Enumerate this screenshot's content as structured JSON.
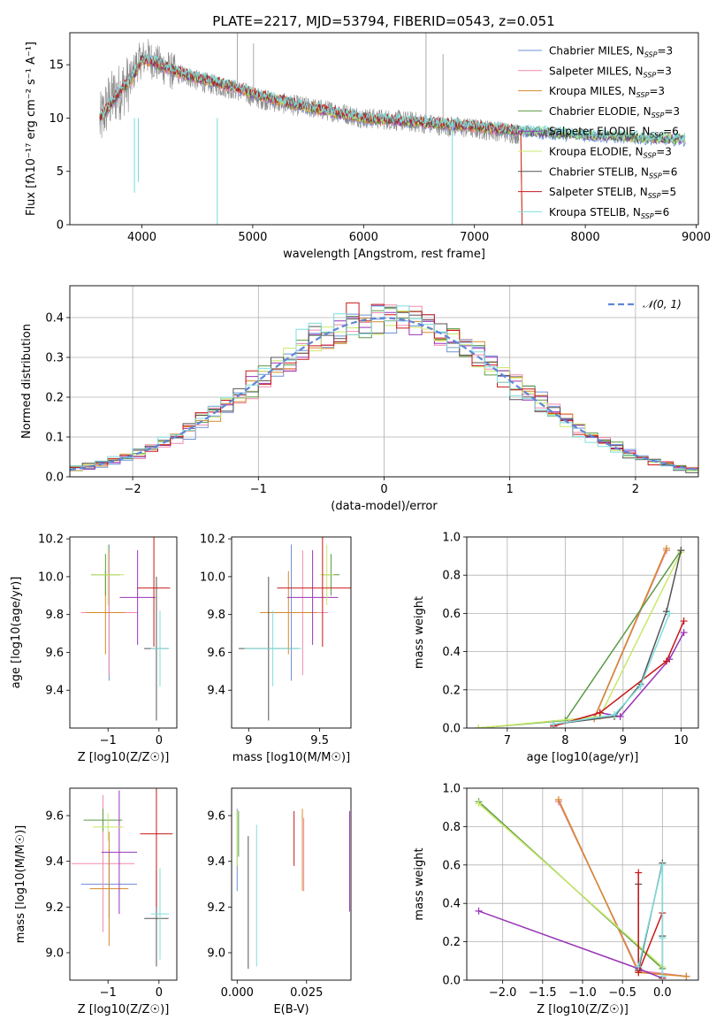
{
  "figure": {
    "title": "PLATE=2217, MJD=53794, FIBERID=0543, z=0.051"
  },
  "colors": [
    "#6f91d9",
    "#f08ab0",
    "#d68a2a",
    "#5b9a46",
    "#9a34b8",
    "#c9e86a",
    "#555555",
    "#c81818",
    "#7fdedd"
  ],
  "chart_data": [
    {
      "type": "line",
      "title": "PLATE=2217, MJD=53794, FIBERID=0543, z=0.051",
      "xlabel": "wavelength [Angstrom, rest frame]",
      "ylabel": "Flux [f_λ 10^-17 erg cm^-2 s^-1 A^-1]",
      "xlim": [
        3350,
        9020
      ],
      "ylim": [
        0,
        18
      ],
      "xticks": [
        4000,
        5000,
        6000,
        7000,
        8000,
        9000
      ],
      "yticks": [
        0,
        5,
        10,
        15
      ],
      "grid": false,
      "legend_position": "top-right",
      "legend": [
        {
          "name": "Chabrier MILES",
          "nssp": "3"
        },
        {
          "name": "Salpeter MILES",
          "nssp": "3"
        },
        {
          "name": "Kroupa MILES",
          "nssp": "3"
        },
        {
          "name": "Chabrier ELODIE",
          "nssp": "3"
        },
        {
          "name": "Salpeter ELODIE",
          "nssp": "6"
        },
        {
          "name": "Kroupa ELODIE",
          "nssp": "3"
        },
        {
          "name": "Chabrier STELIB",
          "nssp": "6"
        },
        {
          "name": "Salpeter STELIB",
          "nssp": "5"
        },
        {
          "name": "Kroupa STELIB",
          "nssp": "6"
        }
      ],
      "observed_spectrum": {
        "x": [
          3620,
          3700,
          3800,
          3900,
          3950,
          4000,
          4050,
          4100,
          4200,
          4300,
          4400,
          4500,
          4700,
          4900,
          5000,
          5200,
          5500,
          5800,
          6000,
          6300,
          6560,
          6700,
          7000,
          7200,
          7400
        ],
        "y": [
          9.5,
          11.5,
          12.5,
          13.5,
          15.0,
          15.5,
          15.8,
          15.3,
          14.8,
          14.2,
          14.0,
          13.5,
          13.0,
          12.5,
          12.0,
          11.5,
          11.0,
          10.5,
          10.0,
          9.8,
          9.5,
          9.3,
          9.0,
          8.8,
          8.5
        ]
      },
      "model_spectrum": {
        "x": [
          3620,
          3700,
          3800,
          3900,
          4000,
          4100,
          4200,
          4400,
          4600,
          4800,
          5000,
          5500,
          6000,
          6500,
          7000,
          7400,
          7800,
          8200,
          8600,
          8900
        ],
        "y": [
          10.0,
          11.0,
          12.5,
          13.5,
          15.5,
          15.3,
          14.8,
          14.0,
          13.5,
          13.0,
          12.3,
          11.0,
          10.0,
          9.6,
          9.2,
          8.8,
          8.5,
          8.3,
          8.1,
          8.0
        ]
      }
    },
    {
      "type": "line",
      "xlabel": "(data-model)/error",
      "ylabel": "Normed distribution",
      "xlim": [
        -2.5,
        2.5
      ],
      "ylim": [
        0,
        0.48
      ],
      "xticks": [
        -2,
        -1,
        0,
        1,
        2
      ],
      "yticks": [
        0.0,
        0.1,
        0.2,
        0.3,
        0.4
      ],
      "grid": true,
      "legend_position": "top-right",
      "reference_curve": "N(0,1)",
      "series_note": "step histograms, one per model, approximately following N(0,1)"
    },
    {
      "type": "scatter",
      "xlabel": "Z [log10(Z/Z☉)]",
      "ylabel": "age [log10(age/yr)]",
      "xlim": [
        -1.75,
        0.35
      ],
      "ylim": [
        9.2,
        10.21
      ],
      "xticks": [
        -1,
        0
      ],
      "yticks": [
        9.4,
        9.6,
        9.8,
        10.0,
        10.2
      ],
      "points": [
        {
          "x": -0.98,
          "y": 9.81,
          "xerr": 0.4,
          "yerr": 0.36
        },
        {
          "x": -0.98,
          "y": 9.81,
          "xerr": 0.55,
          "yerr": 0.33
        },
        {
          "x": -1.05,
          "y": 9.81,
          "xerr": 0.38,
          "yerr": 0.22
        },
        {
          "x": -1.05,
          "y": 10.01,
          "xerr": 0.28,
          "yerr": 0.11
        },
        {
          "x": -0.42,
          "y": 9.89,
          "xerr": 0.35,
          "yerr": 0.25
        },
        {
          "x": -1.0,
          "y": 10.01,
          "xerr": 0.32,
          "yerr": 0.16
        },
        {
          "x": -0.05,
          "y": 9.62,
          "xerr": 0.24,
          "yerr": 0.38
        },
        {
          "x": -0.1,
          "y": 9.94,
          "xerr": 0.32,
          "yerr": 0.31
        },
        {
          "x": 0.02,
          "y": 9.62,
          "xerr": 0.18,
          "yerr": 0.2
        }
      ]
    },
    {
      "type": "scatter",
      "xlabel": "mass [log10(M/M☉)]",
      "ylabel": "",
      "xlim": [
        8.88,
        9.72
      ],
      "ylim": [
        9.2,
        10.21
      ],
      "xticks": [
        9.0,
        9.5
      ],
      "yticks": [
        9.4,
        9.6,
        9.8,
        10.0,
        10.2
      ],
      "points": [
        {
          "x": 9.3,
          "y": 9.81,
          "xerr": 0.15,
          "yerr": 0.36
        },
        {
          "x": 9.38,
          "y": 9.81,
          "xerr": 0.18,
          "yerr": 0.33
        },
        {
          "x": 9.28,
          "y": 9.81,
          "xerr": 0.2,
          "yerr": 0.22
        },
        {
          "x": 9.58,
          "y": 10.01,
          "xerr": 0.06,
          "yerr": 0.11
        },
        {
          "x": 9.45,
          "y": 9.89,
          "xerr": 0.18,
          "yerr": 0.25
        },
        {
          "x": 9.55,
          "y": 10.01,
          "xerr": 0.05,
          "yerr": 0.16
        },
        {
          "x": 9.14,
          "y": 9.62,
          "xerr": 0.21,
          "yerr": 0.38
        },
        {
          "x": 9.52,
          "y": 9.94,
          "xerr": 0.32,
          "yerr": 0.31
        },
        {
          "x": 9.17,
          "y": 9.62,
          "xerr": 0.2,
          "yerr": 0.2
        }
      ]
    },
    {
      "type": "line",
      "xlabel": "age [log10(age/yr)]",
      "ylabel": "mass weight",
      "xlim": [
        6.3,
        10.3
      ],
      "ylim": [
        0,
        1.0
      ],
      "xticks": [
        7,
        8,
        9,
        10
      ],
      "yticks": [
        0.0,
        0.2,
        0.4,
        0.6,
        0.8,
        1.0
      ],
      "grid": true,
      "series": [
        {
          "x": [
            7.8,
            8.5,
            9.75
          ],
          "y": [
            0.02,
            0.05,
            0.93
          ]
        },
        {
          "x": [
            7.8,
            8.5,
            9.75
          ],
          "y": [
            0.02,
            0.05,
            0.93
          ]
        },
        {
          "x": [
            7.8,
            8.5,
            9.75
          ],
          "y": [
            0.02,
            0.05,
            0.94
          ]
        },
        {
          "x": [
            6.5,
            8.0,
            10.0
          ],
          "y": [
            0.0,
            0.04,
            0.93
          ]
        },
        {
          "x": [
            7.8,
            8.6,
            8.95,
            9.8,
            10.05
          ],
          "y": [
            0.01,
            0.08,
            0.06,
            0.36,
            0.5
          ]
        },
        {
          "x": [
            6.5,
            8.6,
            10.0
          ],
          "y": [
            0.0,
            0.06,
            0.92
          ]
        },
        {
          "x": [
            7.8,
            8.85,
            9.3,
            9.75,
            10.0
          ],
          "y": [
            0.02,
            0.06,
            0.23,
            0.61,
            0.93
          ]
        },
        {
          "x": [
            7.8,
            8.6,
            9.75,
            10.05
          ],
          "y": [
            0.01,
            0.08,
            0.35,
            0.56
          ]
        },
        {
          "x": [
            7.8,
            8.85,
            9.3,
            9.8
          ],
          "y": [
            0.02,
            0.07,
            0.22,
            0.6
          ]
        }
      ]
    },
    {
      "type": "scatter",
      "xlabel": "Z [log10(Z/Z☉)]",
      "ylabel": "mass [log10(M/M☉)]",
      "xlim": [
        -1.75,
        0.35
      ],
      "ylim": [
        8.88,
        9.72
      ],
      "xticks": [
        -1,
        0
      ],
      "yticks": [
        9.0,
        9.2,
        9.4,
        9.6
      ],
      "points": [
        {
          "x": -0.98,
          "y": 9.3,
          "xerr": 0.55,
          "yerr": 0.15
        },
        {
          "x": -1.1,
          "y": 9.39,
          "xerr": 0.62,
          "yerr": 0.3
        },
        {
          "x": -0.98,
          "y": 9.28,
          "xerr": 0.38,
          "yerr": 0.25
        },
        {
          "x": -1.1,
          "y": 9.58,
          "xerr": 0.38,
          "yerr": 0.05
        },
        {
          "x": -0.78,
          "y": 9.44,
          "xerr": 0.35,
          "yerr": 0.27
        },
        {
          "x": -1.0,
          "y": 9.55,
          "xerr": 0.3,
          "yerr": 0.06
        },
        {
          "x": -0.05,
          "y": 9.15,
          "xerr": 0.24,
          "yerr": 0.21
        },
        {
          "x": -0.05,
          "y": 9.52,
          "xerr": 0.32,
          "yerr": 0.32
        },
        {
          "x": 0.02,
          "y": 9.17,
          "xerr": 0.18,
          "yerr": 0.2
        }
      ]
    },
    {
      "type": "scatter",
      "xlabel": "E(B-V)",
      "ylabel": "",
      "xlim": [
        -0.002,
        0.041
      ],
      "ylim": [
        8.88,
        9.72
      ],
      "xticks": [
        0.0,
        0.025
      ],
      "xtick_labels": [
        "0.000",
        "0.025"
      ],
      "yticks": [
        9.0,
        9.2,
        9.4,
        9.6
      ],
      "points": [
        {
          "x": 0.0,
          "y": 9.45,
          "yerr": 0.18
        },
        {
          "x": 0.024,
          "y": 9.43,
          "yerr": 0.16
        },
        {
          "x": 0.0235,
          "y": 9.45,
          "yerr": 0.18
        },
        {
          "x": 0.0005,
          "y": 9.52,
          "yerr": 0.1
        },
        {
          "x": 0.0405,
          "y": 9.4,
          "yerr": 0.22
        },
        {
          "x": 0.0,
          "y": 9.5,
          "yerr": 0.12
        },
        {
          "x": 0.004,
          "y": 9.22,
          "yerr": 0.29
        },
        {
          "x": 0.0205,
          "y": 9.5,
          "yerr": 0.12
        },
        {
          "x": 0.007,
          "y": 9.25,
          "yerr": 0.31
        }
      ]
    },
    {
      "type": "line",
      "xlabel": "Z [log10(Z/Z☉)]",
      "ylabel": "mass weight",
      "xlim": [
        -2.45,
        0.45
      ],
      "ylim": [
        0,
        1.0
      ],
      "xticks": [
        -2.0,
        -1.5,
        -1.0,
        -0.5,
        0.0
      ],
      "yticks": [
        0.0,
        0.2,
        0.4,
        0.6,
        0.8,
        1.0
      ],
      "grid": true,
      "series": [
        {
          "x": [
            -1.3,
            -0.3,
            0.3
          ],
          "y": [
            0.93,
            0.05,
            0.02
          ]
        },
        {
          "x": [
            -1.3,
            -0.3,
            0.3
          ],
          "y": [
            0.93,
            0.05,
            0.02
          ]
        },
        {
          "x": [
            -1.3,
            -0.3,
            0.3
          ],
          "y": [
            0.94,
            0.04,
            0.02
          ]
        },
        {
          "x": [
            -2.3,
            0.0
          ],
          "y": [
            0.93,
            0.06
          ]
        },
        {
          "x": [
            -2.3,
            -0.3,
            0.0
          ],
          "y": [
            0.36,
            0.06,
            0.01
          ]
        },
        {
          "x": [
            -2.3,
            0.0
          ],
          "y": [
            0.92,
            0.07
          ]
        },
        {
          "x": [
            -0.3,
            -0.3,
            0.0,
            0.0,
            0.0
          ],
          "y": [
            0.5,
            0.05,
            0.61,
            0.23,
            0.02
          ]
        },
        {
          "x": [
            -0.3,
            -0.3,
            0.0,
            0.0
          ],
          "y": [
            0.56,
            0.04,
            0.35,
            0.01
          ]
        },
        {
          "x": [
            -0.3,
            0.0,
            0.0,
            0.0
          ],
          "y": [
            0.07,
            0.6,
            0.22,
            0.02
          ]
        }
      ]
    }
  ]
}
